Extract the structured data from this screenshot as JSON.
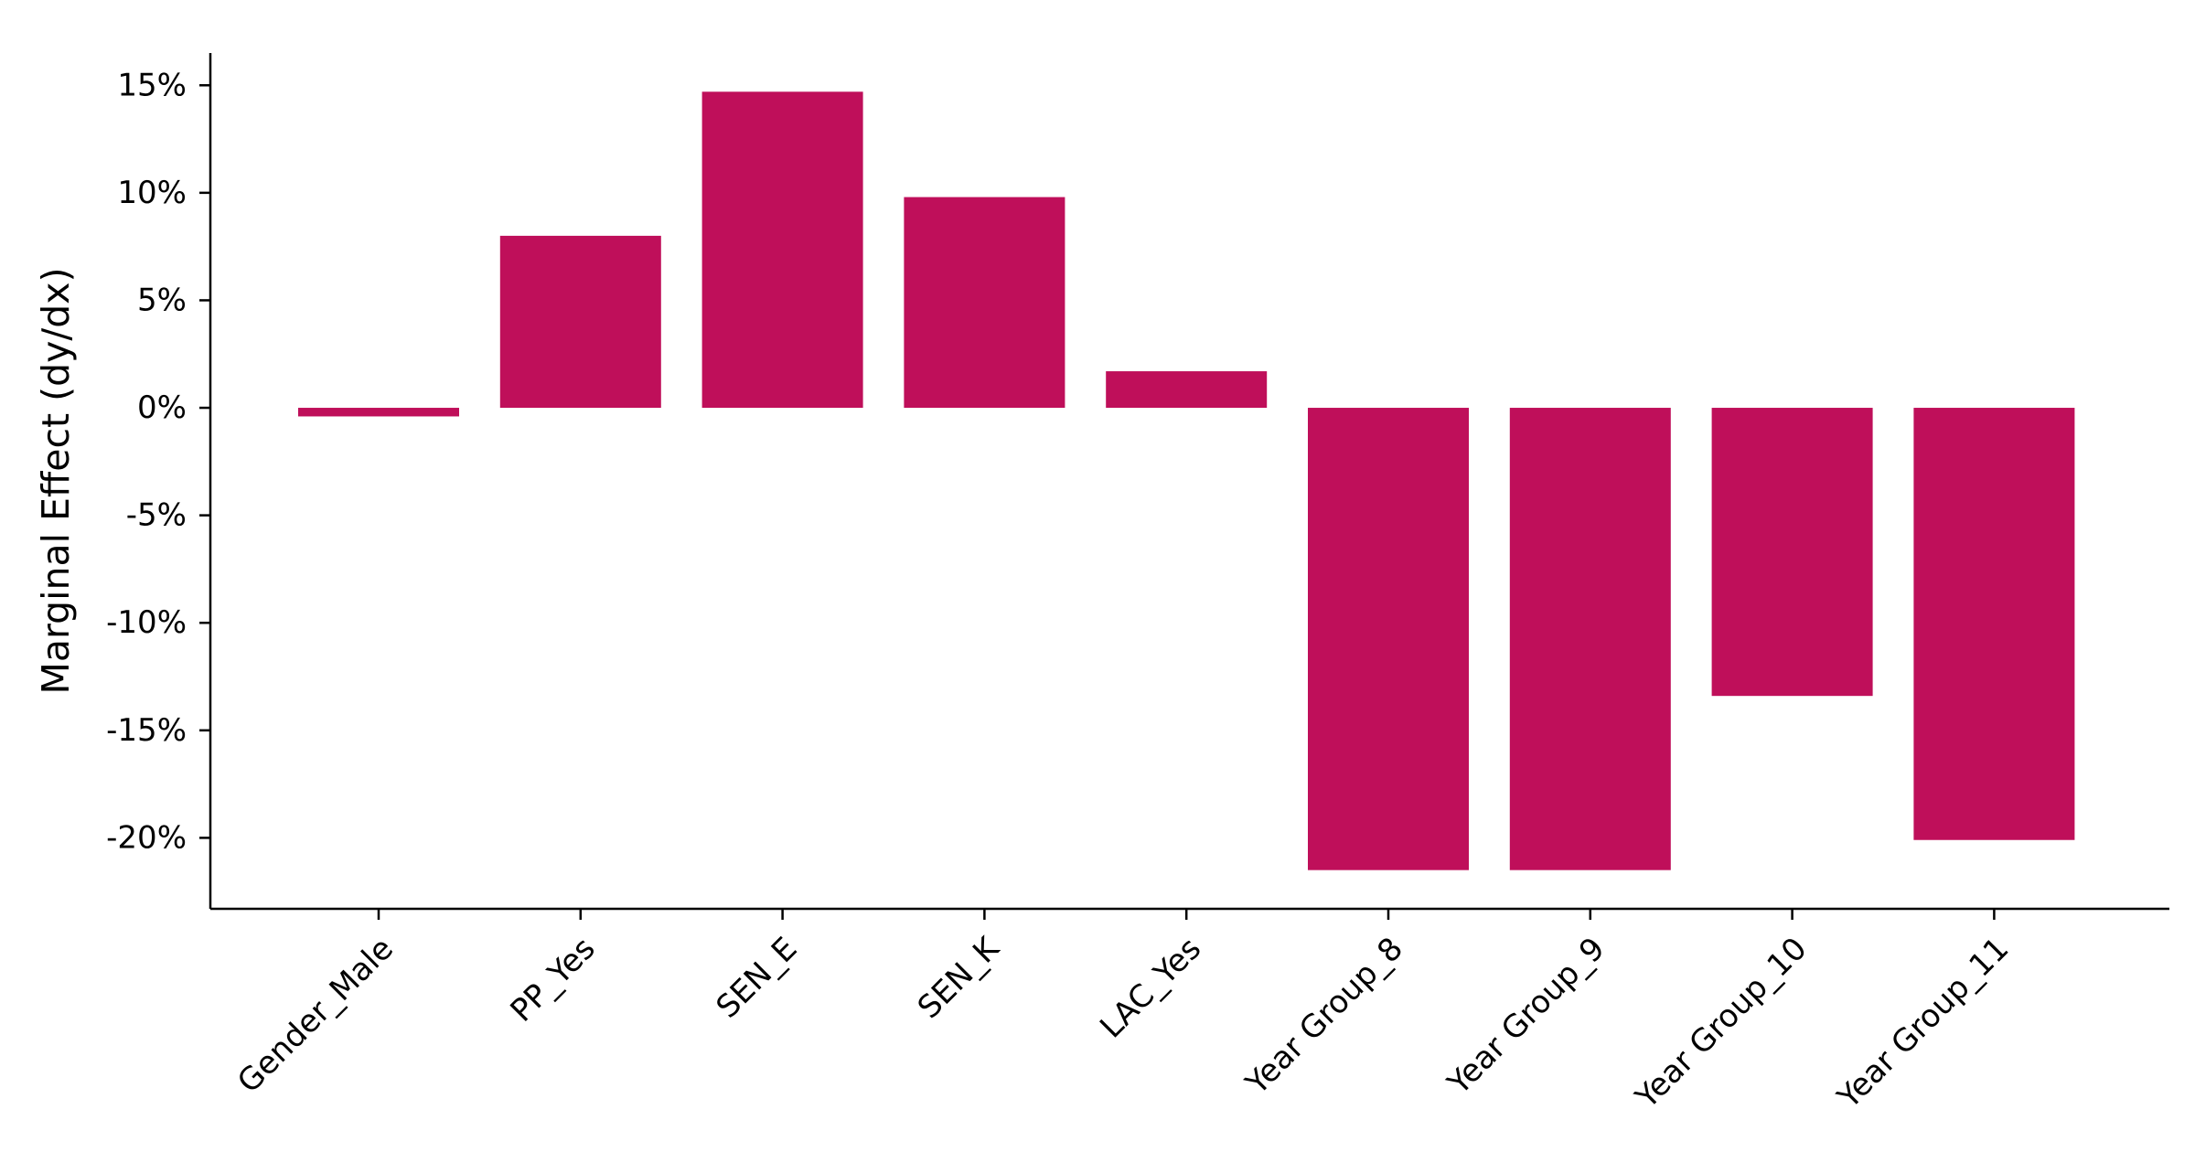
{
  "chart_data": {
    "type": "bar",
    "title": "",
    "xlabel": "",
    "ylabel": "Marginal Effect (dy/dx)",
    "categories": [
      "Gender_Male",
      "PP_Yes",
      "SEN_E",
      "SEN_K",
      "LAC_Yes",
      "Year Group_8",
      "Year Group_9",
      "Year Group_10",
      "Year Group_11"
    ],
    "values": [
      -0.4,
      8.0,
      14.7,
      9.8,
      1.7,
      -21.5,
      -21.5,
      -13.4,
      -20.1
    ],
    "value_unit": "%",
    "yticks": [
      15,
      10,
      5,
      0,
      -5,
      -10,
      -15,
      -20
    ],
    "ytick_labels": [
      "15%",
      "10%",
      "5%",
      "0%",
      "-5%",
      "-10%",
      "-15%",
      "-20%"
    ],
    "ylim": [
      -23.3,
      16.5
    ],
    "grid": false,
    "legend": "none",
    "bar_color": "#bf0f5a"
  }
}
